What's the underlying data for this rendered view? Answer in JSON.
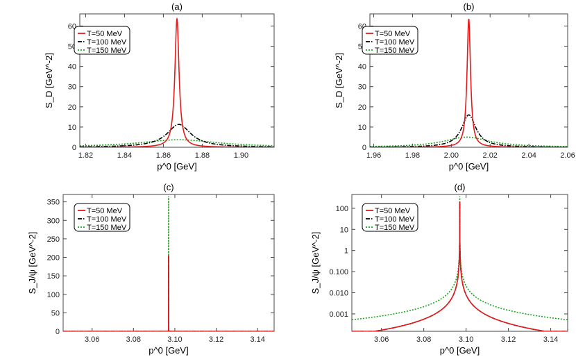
{
  "chart_data": [
    {
      "panel": "(a)",
      "type": "line",
      "title": "(a)",
      "xlabel": "p^0 [GeV]",
      "ylabel": "S_D [GeV^-2]",
      "xlim": [
        1.817,
        1.917
      ],
      "ylim": [
        0,
        66
      ],
      "yscale": "linear",
      "xticks": [
        1.82,
        1.84,
        1.86,
        1.88,
        1.9
      ],
      "xtick_labels": [
        "1.82",
        "1.84",
        "1.86",
        "1.88",
        "1.90"
      ],
      "yticks": [
        0,
        10,
        20,
        30,
        40,
        50,
        60
      ],
      "ytick_labels": [
        "0",
        "10",
        "20",
        "30",
        "40",
        "50",
        "60"
      ],
      "legend_position": "top-left",
      "series": [
        {
          "name": "T=50 MeV",
          "color": "#e41a1c",
          "dash": "solid",
          "shape": "lorentz",
          "center": 1.867,
          "peak": 63.5,
          "width": 0.0013,
          "base": 0
        },
        {
          "name": "T=100 MeV",
          "color": "#000000",
          "dash": "dashdot",
          "shape": "lorentz",
          "center": 1.868,
          "peak": 11.3,
          "width": 0.0075,
          "base": 0
        },
        {
          "name": "T=150 MeV",
          "color": "#1aa61a",
          "dash": "dot",
          "shape": "lorentz",
          "center": 1.868,
          "peak": 3.7,
          "width": 0.025,
          "base": 0
        }
      ]
    },
    {
      "panel": "(b)",
      "type": "line",
      "title": "(b)",
      "xlabel": "p^0 [GeV]",
      "ylabel": "S_D [GeV^-2]",
      "xlim": [
        1.958,
        2.06
      ],
      "ylim": [
        0,
        66
      ],
      "yscale": "linear",
      "xticks": [
        1.96,
        1.98,
        2.0,
        2.02,
        2.04,
        2.06
      ],
      "xtick_labels": [
        "1.96",
        "1.98",
        "2.00",
        "2.02",
        "2.04",
        "2.06"
      ],
      "yticks": [
        0,
        10,
        20,
        30,
        40,
        50,
        60
      ],
      "ytick_labels": [
        "0",
        "10",
        "20",
        "30",
        "40",
        "50",
        "60"
      ],
      "legend_position": "top-left",
      "series": [
        {
          "name": "T=50 MeV",
          "color": "#e41a1c",
          "dash": "solid",
          "shape": "lorentz",
          "center": 2.009,
          "peak": 63.5,
          "width": 0.0011,
          "base": 0
        },
        {
          "name": "T=100 MeV",
          "color": "#000000",
          "dash": "dashdot",
          "shape": "lorentz",
          "center": 2.009,
          "peak": 16.0,
          "width": 0.0045,
          "base": 0
        },
        {
          "name": "T=150 MeV",
          "color": "#1aa61a",
          "dash": "dot",
          "shape": "lorentz",
          "center": 2.008,
          "peak": 5.0,
          "width": 0.0145,
          "base": 0
        }
      ]
    },
    {
      "panel": "(c)",
      "type": "line",
      "title": "(c)",
      "xlabel": "p^0 [GeV]",
      "ylabel": "S_J/ψ [GeV^-2]",
      "xlim": [
        3.046,
        3.148
      ],
      "ylim": [
        0,
        370
      ],
      "yscale": "linear",
      "xticks": [
        3.06,
        3.08,
        3.1,
        3.12,
        3.14
      ],
      "xtick_labels": [
        "3.06",
        "3.08",
        "3.10",
        "3.12",
        "3.14"
      ],
      "yticks": [
        0,
        50,
        100,
        150,
        200,
        250,
        300,
        350
      ],
      "ytick_labels": [
        "0",
        "50",
        "100",
        "150",
        "200",
        "250",
        "300",
        "350"
      ],
      "legend_position": "top-left",
      "series": [
        {
          "name": "T=50 MeV",
          "color": "#e41a1c",
          "dash": "solid",
          "shape": "cusp",
          "center": 3.097,
          "peak": 205,
          "a": 1.1e-06,
          "p": 1.53
        },
        {
          "name": "T=100 MeV",
          "color": "#000000",
          "dash": "dashdot",
          "shape": "cusp",
          "center": 3.097,
          "peak": 205,
          "a": 1.1e-06,
          "p": 1.53
        },
        {
          "name": "T=150 MeV",
          "color": "#1aa61a",
          "dash": "dot",
          "shape": "cusp",
          "center": 3.097,
          "peak": 365,
          "a": 1.1e-05,
          "p": 1.3
        }
      ]
    },
    {
      "panel": "(d)",
      "type": "line",
      "title": "(d)",
      "xlabel": "p^0 [GeV]",
      "ylabel": "S_J/ψ [GeV^-2]",
      "xlim": [
        3.046,
        3.148
      ],
      "ylim": [
        0.00015,
        450
      ],
      "yscale": "log",
      "xticks": [
        3.06,
        3.08,
        3.1,
        3.12,
        3.14
      ],
      "xtick_labels": [
        "3.06",
        "3.08",
        "3.10",
        "3.12",
        "3.14"
      ],
      "yticks": [
        0.001,
        0.01,
        0.1,
        1,
        10,
        100
      ],
      "ytick_labels": [
        "0.001",
        "0.010",
        "0.100",
        "1",
        "10",
        "100"
      ],
      "legend_position": "top-left",
      "series": [
        {
          "name": "T=50 MeV",
          "color": "#e41a1c",
          "dash": "solid",
          "shape": "cusp",
          "center": 3.097,
          "peak": 205,
          "a": 1.1e-06,
          "p": 1.53
        },
        {
          "name": "T=100 MeV",
          "color": "#000000",
          "dash": "dashdot",
          "shape": "cusp",
          "center": 3.097,
          "peak": 205,
          "a": 1.1e-06,
          "p": 1.53
        },
        {
          "name": "T=150 MeV",
          "color": "#1aa61a",
          "dash": "dot",
          "shape": "cusp",
          "center": 3.097,
          "peak": 365,
          "a": 1.1e-05,
          "p": 1.3
        }
      ]
    }
  ]
}
